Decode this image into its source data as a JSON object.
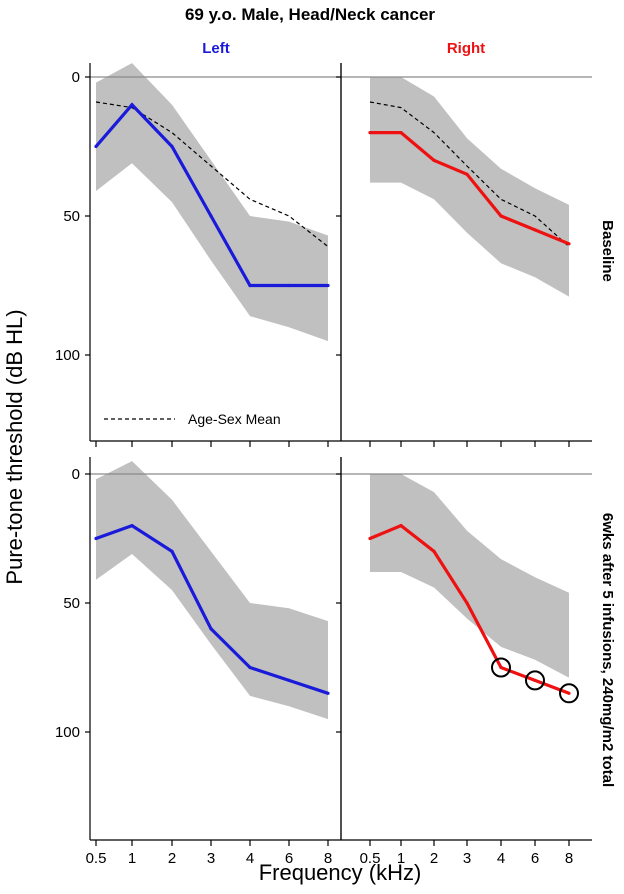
{
  "colors": {
    "left": "#1a1adb",
    "right": "#ee1111",
    "band": "#c0c0c0",
    "axis": "#000000",
    "zero_line": "#8a8a8a",
    "mean_line": "#000000"
  },
  "chart_data": {
    "type": "line",
    "title": "69 y.o. Male, Head/Neck cancer",
    "ylabel": "Pure-tone threshold (dB HL)",
    "xlabel": "Frequency (kHz)",
    "x_ticks": [
      "0.5",
      "1",
      "2",
      "3",
      "4",
      "6",
      "8"
    ],
    "y_ticks": [
      "0",
      "50",
      "100"
    ],
    "ylim": [
      0,
      128
    ],
    "y_inverted": true,
    "column_titles": [
      "Left",
      "Right"
    ],
    "row_labels": [
      "Baseline",
      "6wks after 5 infusions, 240mg/m2 total"
    ],
    "legend": {
      "label": "Age-Sex Mean",
      "position": "bottom-left of top-left panel"
    },
    "panels": [
      {
        "row": 0,
        "col": 0,
        "ear": "Left",
        "values": [
          25,
          10,
          25,
          50,
          75,
          75,
          75
        ],
        "band_upper": [
          2,
          -5,
          10,
          30,
          50,
          52,
          57
        ],
        "band_lower": [
          41,
          31,
          45,
          66,
          86,
          90,
          95
        ],
        "age_sex_mean": [
          9,
          11,
          20,
          32,
          44,
          50,
          61
        ],
        "markers": []
      },
      {
        "row": 0,
        "col": 1,
        "ear": "Right",
        "values": [
          20,
          20,
          30,
          35,
          50,
          55,
          60
        ],
        "band_upper": [
          0,
          0,
          7,
          22,
          33,
          40,
          46
        ],
        "band_lower": [
          38,
          38,
          44,
          56,
          67,
          72,
          79
        ],
        "age_sex_mean": [
          9,
          11,
          20,
          32,
          44,
          50,
          61
        ],
        "markers": []
      },
      {
        "row": 1,
        "col": 0,
        "ear": "Left",
        "values": [
          25,
          20,
          30,
          60,
          75,
          80,
          85
        ],
        "band_upper": [
          2,
          -5,
          10,
          30,
          50,
          52,
          57
        ],
        "band_lower": [
          41,
          31,
          45,
          66,
          86,
          90,
          95
        ],
        "age_sex_mean": null,
        "markers": []
      },
      {
        "row": 1,
        "col": 1,
        "ear": "Right",
        "values": [
          25,
          20,
          30,
          50,
          75,
          80,
          85
        ],
        "band_upper": [
          0,
          0,
          7,
          22,
          33,
          40,
          46
        ],
        "band_lower": [
          38,
          38,
          44,
          56,
          67,
          72,
          79
        ],
        "age_sex_mean": null,
        "markers": [
          4,
          5,
          6
        ]
      }
    ]
  }
}
